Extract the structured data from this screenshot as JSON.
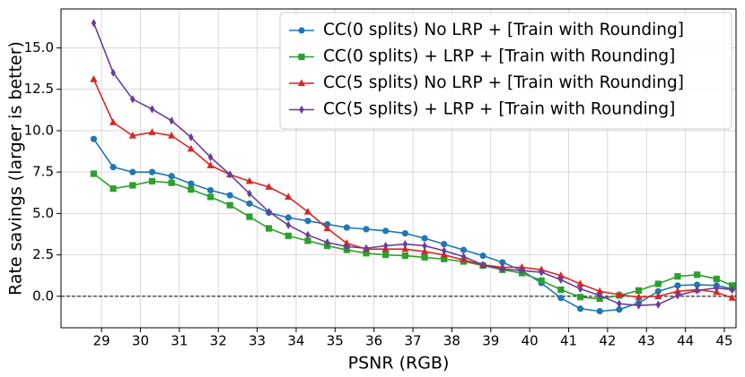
{
  "chart_data": {
    "type": "line",
    "xlabel": "PSNR (RGB)",
    "ylabel": "Rate savings (larger is better)",
    "x": [
      28.8,
      29.3,
      29.8,
      30.3,
      30.8,
      31.3,
      31.8,
      32.3,
      32.8,
      33.3,
      33.8,
      34.3,
      34.8,
      35.3,
      35.8,
      36.3,
      36.8,
      37.3,
      37.8,
      38.3,
      38.8,
      39.3,
      39.8,
      40.3,
      40.8,
      41.3,
      41.8,
      42.3,
      42.8,
      43.3,
      43.8,
      44.3,
      44.8,
      45.2
    ],
    "series": [
      {
        "name": "CC(0 splits) No LRP + [Train with Rounding]",
        "color": "#1f77b4",
        "marker": "circle",
        "values": [
          9.5,
          7.8,
          7.5,
          7.5,
          7.25,
          6.8,
          6.4,
          6.1,
          5.6,
          5.05,
          4.75,
          4.55,
          4.35,
          4.15,
          4.05,
          3.95,
          3.8,
          3.5,
          3.15,
          2.8,
          2.45,
          2.05,
          1.55,
          0.8,
          -0.1,
          -0.75,
          -0.9,
          -0.8,
          -0.4,
          0.3,
          0.65,
          0.7,
          0.65,
          0.45
        ]
      },
      {
        "name": "CC(0 splits) + LRP + [Train with Rounding]",
        "color": "#2ca02c",
        "marker": "square",
        "values": [
          7.4,
          6.5,
          6.7,
          6.95,
          6.85,
          6.45,
          6.0,
          5.5,
          4.8,
          4.1,
          3.65,
          3.35,
          3.05,
          2.8,
          2.6,
          2.5,
          2.45,
          2.35,
          2.25,
          2.1,
          1.85,
          1.6,
          1.4,
          0.95,
          0.4,
          -0.05,
          -0.15,
          0.05,
          0.35,
          0.75,
          1.2,
          1.3,
          1.05,
          0.65
        ]
      },
      {
        "name": "CC(5 splits) No LRP + [Train with Rounding]",
        "color": "#d62728",
        "marker": "triangle",
        "values": [
          13.1,
          10.5,
          9.7,
          9.9,
          9.7,
          8.9,
          7.9,
          7.35,
          6.95,
          6.6,
          6.0,
          5.1,
          4.1,
          3.2,
          2.85,
          2.85,
          2.85,
          2.7,
          2.5,
          2.2,
          1.9,
          1.75,
          1.75,
          1.6,
          1.25,
          0.75,
          0.3,
          0.1,
          -0.05,
          0.0,
          0.3,
          0.4,
          0.25,
          -0.1
        ]
      },
      {
        "name": "CC(5 splits) + LRP + [Train with Rounding]",
        "color": "#6a3d9a",
        "marker": "diamond",
        "values": [
          16.5,
          13.5,
          11.9,
          11.3,
          10.6,
          9.6,
          8.4,
          7.35,
          6.2,
          5.1,
          4.3,
          3.7,
          3.25,
          3.0,
          2.9,
          3.05,
          3.15,
          3.05,
          2.75,
          2.4,
          1.9,
          1.65,
          1.55,
          1.45,
          1.0,
          0.45,
          0.05,
          -0.45,
          -0.55,
          -0.5,
          0.05,
          0.35,
          0.5,
          0.4
        ]
      }
    ],
    "xlim": [
      27.96,
      45.3
    ],
    "ylim": [
      -1.9,
      17.35
    ],
    "xticks": [
      29,
      30,
      31,
      32,
      33,
      34,
      35,
      36,
      37,
      38,
      39,
      40,
      41,
      42,
      43,
      44,
      45
    ],
    "yticks": [
      {
        "value": 0,
        "label": "0.0"
      },
      2.5,
      {
        "value": 5,
        "label": "5.0"
      },
      7.5,
      {
        "value": 10,
        "label": "10.0"
      },
      12.5,
      {
        "value": 15,
        "label": "15.0"
      }
    ],
    "hline": 0,
    "grid": true,
    "legend": "upper right"
  }
}
